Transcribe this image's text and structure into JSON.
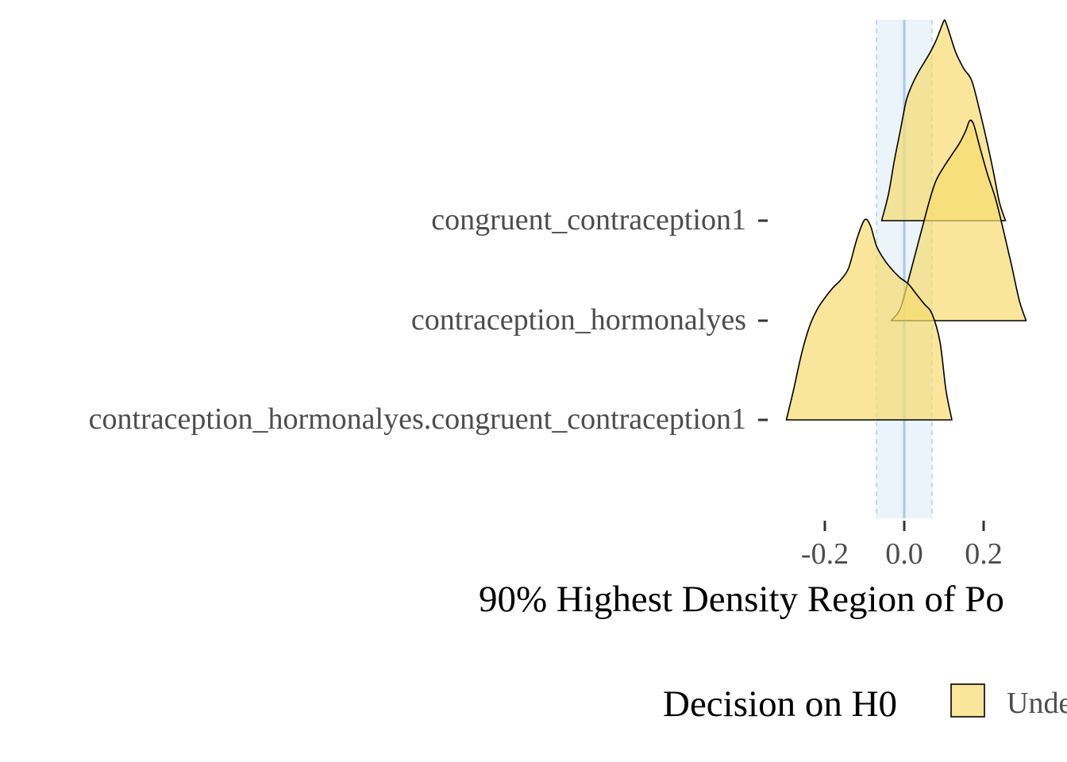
{
  "chart_data": {
    "type": "ridgeline",
    "title": "",
    "xlabel": "90% Highest Density Region of Po",
    "ylabel": "",
    "x_ticks": [
      "-0.2",
      "0.0",
      "0.2"
    ],
    "x_tick_values": [
      -0.2,
      0.0,
      0.2
    ],
    "xlim": [
      -0.297,
      0.41
    ],
    "rope": [
      -0.07,
      0.07
    ],
    "rope_center": 0.0,
    "categories": [
      "congruent_contraception1",
      "contraception_hormonalyes",
      "contraception_hormonalyes.congruent_contraception1"
    ],
    "series": [
      {
        "category": "congruent_contraception1",
        "x": [
          -0.057,
          -0.04,
          -0.025,
          -0.01,
          0.005,
          0.02,
          0.035,
          0.05,
          0.065,
          0.08,
          0.09,
          0.1,
          0.105,
          0.115,
          0.13,
          0.15,
          0.17,
          0.19,
          0.21,
          0.225,
          0.24,
          0.255
        ],
        "density": [
          0,
          0.13,
          0.3,
          0.45,
          0.6,
          0.68,
          0.74,
          0.79,
          0.84,
          0.9,
          0.95,
          1.0,
          0.99,
          0.93,
          0.84,
          0.76,
          0.7,
          0.55,
          0.38,
          0.24,
          0.09,
          0
        ]
      },
      {
        "category": "contraception_hormonalyes",
        "x": [
          -0.033,
          -0.01,
          0.01,
          0.03,
          0.05,
          0.065,
          0.08,
          0.1,
          0.12,
          0.14,
          0.155,
          0.165,
          0.175,
          0.19,
          0.21,
          0.23,
          0.25,
          0.27,
          0.29,
          0.307
        ],
        "density": [
          0,
          0.06,
          0.2,
          0.35,
          0.5,
          0.61,
          0.7,
          0.77,
          0.83,
          0.89,
          0.95,
          1.0,
          0.98,
          0.87,
          0.73,
          0.61,
          0.45,
          0.28,
          0.1,
          0
        ]
      },
      {
        "category": "contraception_hormonalyes.congruent_contraception1",
        "x": [
          -0.297,
          -0.28,
          -0.26,
          -0.24,
          -0.22,
          -0.2,
          -0.18,
          -0.16,
          -0.14,
          -0.12,
          -0.1,
          -0.085,
          -0.07,
          -0.05,
          -0.03,
          -0.01,
          0.01,
          0.03,
          0.05,
          0.07,
          0.09,
          0.105,
          0.12
        ],
        "density": [
          0,
          0.14,
          0.32,
          0.46,
          0.55,
          0.61,
          0.66,
          0.7,
          0.76,
          0.9,
          1.0,
          0.97,
          0.87,
          0.8,
          0.75,
          0.71,
          0.68,
          0.63,
          0.58,
          0.53,
          0.39,
          0.15,
          0
        ]
      }
    ],
    "legend": {
      "title": "Decision on H0",
      "entries": [
        "Undecided"
      ],
      "visible_text": "Unde",
      "position": "bottom"
    },
    "colors": {
      "fill": "#f7dc6f",
      "stroke": "#000000",
      "rope_band": "#dbe9f8",
      "rope_line": "#a9c9e8",
      "tick": "#333333",
      "tick_label": "#4d4d4d"
    },
    "grid": false
  }
}
